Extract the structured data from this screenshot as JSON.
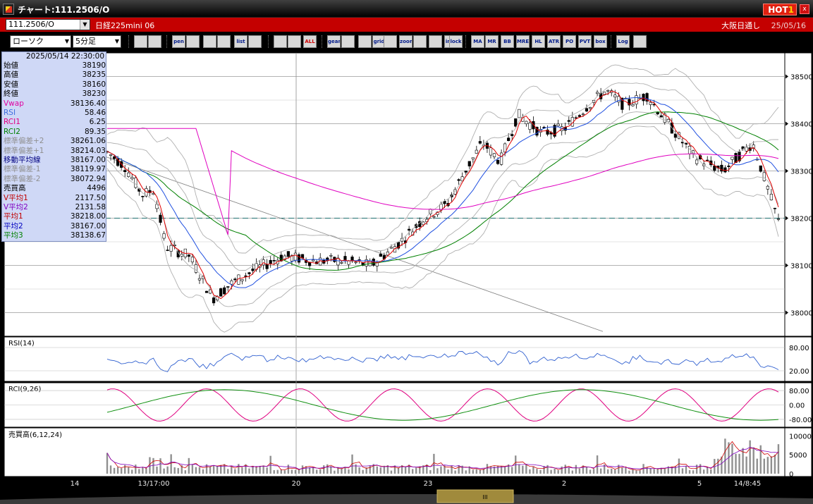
{
  "window": {
    "title": "チャート:111.2506/O",
    "hot_label": "HOT",
    "hot_digit": "1",
    "close_label": "x"
  },
  "header": {
    "symbol": "111.2506/O",
    "instrument": "日経225mini 06",
    "market": "大阪日通し",
    "date": "25/05/16"
  },
  "toolbar": {
    "chart_type": "ローソク",
    "interval": "5分足",
    "buttons": [
      "search",
      "window",
      "pen",
      "brush",
      "cursor",
      "refresh",
      "list",
      "trash",
      "bar-a",
      "bar-b",
      "ALL",
      "gear",
      "wrench",
      "palette",
      "grid",
      "download",
      "zoom",
      "chart-a",
      "chart-b",
      "info",
      "lock",
      "MA",
      "MR",
      "BB",
      "MRE",
      "HL",
      "ATR",
      "PO",
      "PVT",
      "box",
      "Log",
      "export"
    ]
  },
  "info_panel": {
    "datetime": "2025/05/14  22:30:00",
    "rows": [
      {
        "label": "始値",
        "value": "38190",
        "color": "#000000"
      },
      {
        "label": "高値",
        "value": "38235",
        "color": "#000000"
      },
      {
        "label": "安値",
        "value": "38160",
        "color": "#000000"
      },
      {
        "label": "終値",
        "value": "38230",
        "color": "#000000"
      },
      {
        "label": "Vwap",
        "value": "38136.40",
        "color": "#e000a0"
      },
      {
        "label": "RSI",
        "value": "58.46",
        "color": "#4070e0"
      },
      {
        "label": "RCI1",
        "value": "6.25",
        "color": "#e00080"
      },
      {
        "label": "RCI2",
        "value": "89.35",
        "color": "#008000"
      },
      {
        "label": "標準偏差+2",
        "value": "38261.06",
        "color": "#909090"
      },
      {
        "label": "標準偏差+1",
        "value": "38214.03",
        "color": "#909090"
      },
      {
        "label": "移動平均線",
        "value": "38167.00",
        "color": "#000080"
      },
      {
        "label": "標準偏差-1",
        "value": "38119.97",
        "color": "#909090"
      },
      {
        "label": "標準偏差-2",
        "value": "38072.94",
        "color": "#909090"
      },
      {
        "label": "売買高",
        "value": "4496",
        "color": "#000000"
      },
      {
        "label": "V平均1",
        "value": "2117.50",
        "color": "#c00000"
      },
      {
        "label": "V平均2",
        "value": "2131.58",
        "color": "#8000c0"
      },
      {
        "label": "平均1",
        "value": "38218.00",
        "color": "#c00000"
      },
      {
        "label": "平均2",
        "value": "38167.00",
        "color": "#0000c0"
      },
      {
        "label": "平均3",
        "value": "38138.67",
        "color": "#008000"
      }
    ]
  },
  "price_axis": {
    "ticks": [
      "38500",
      "38400",
      "38300",
      "38200",
      "38100",
      "38000"
    ]
  },
  "rsi_panel": {
    "label": "RSI(14)",
    "ticks": [
      "80.00",
      "20.00"
    ]
  },
  "rci_panel": {
    "label": "RCI(9,26)",
    "ticks": [
      "80.00",
      "0.00",
      "-80.00"
    ]
  },
  "volume_panel": {
    "label": "売買高(6,12,24)",
    "ticks": [
      "10000",
      "5000",
      "0"
    ]
  },
  "time_axis": {
    "labels": [
      "14",
      "13/17:00",
      "20",
      "23",
      "2",
      "5",
      "14/8:45"
    ]
  },
  "scrollbar": {
    "thumb_label": "III"
  },
  "colors": {
    "up": "#ffffff",
    "down": "#000000",
    "ma_short": "#e00000",
    "ma_mid": "#2050e0",
    "ma_long": "#008000",
    "vwap": "#e000c0",
    "band": "#b0b0b0"
  }
}
